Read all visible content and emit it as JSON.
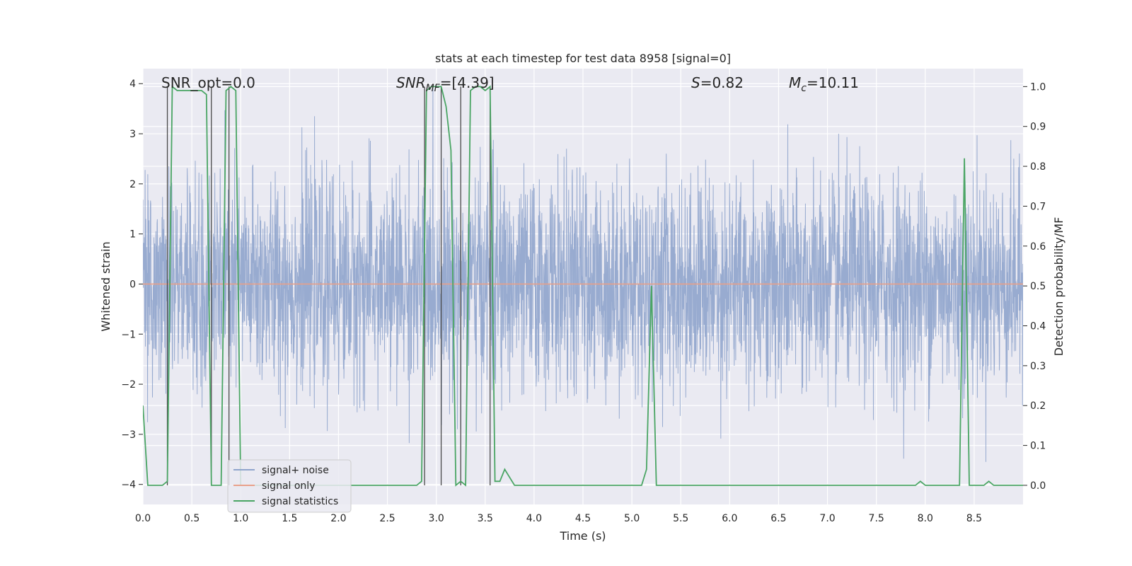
{
  "chart_data": {
    "type": "line",
    "title": "stats at each timestep for test data 8958 [signal=0]",
    "xlabel": "Time (s)",
    "ylabel": "Whitened strain",
    "ylabel_right": "Detection probability/MF",
    "xlim": [
      0,
      9.0
    ],
    "ylim": [
      -4.4,
      4.3
    ],
    "ylim_right": [
      -0.048,
      1.045
    ],
    "x_ticks": [
      "0.0",
      "0.5",
      "1.0",
      "1.5",
      "2.0",
      "2.5",
      "3.0",
      "3.5",
      "4.0",
      "4.5",
      "5.0",
      "5.5",
      "6.0",
      "6.5",
      "7.0",
      "7.5",
      "8.0",
      "8.5"
    ],
    "y_ticks": [
      "4",
      "3",
      "2",
      "1",
      "0",
      "−1",
      "−2",
      "−3",
      "−4"
    ],
    "y_ticks_right": [
      "1.0",
      "0.9",
      "0.8",
      "0.7",
      "0.6",
      "0.5",
      "0.4",
      "0.3",
      "0.2",
      "0.1",
      "0.0"
    ],
    "grid": true,
    "legend_position": "lower-left",
    "annotations": {
      "snr_opt": "SNR_opt=0.0",
      "snr_mf_italic": "SNR",
      "snr_mf_sub": "MF",
      "snr_mf_value": "=[4.39]",
      "s_italic": "S",
      "s_value": "=0.82",
      "mc_italic": "M",
      "mc_sub": "c",
      "mc_value": "=10.11"
    },
    "series": [
      {
        "name": "signal+ noise",
        "color": "#8fa4cc",
        "description": "whitened strain noise, roughly Gaussian with sigma ≈ 1 sampled at high rate over 0–9 s"
      },
      {
        "name": "signal only",
        "color": "#e8a08a",
        "values_constant": 0
      },
      {
        "name": "signal statistics",
        "color": "#4aa564",
        "axis": "right",
        "x": [
          0.0,
          0.05,
          0.1,
          0.15,
          0.2,
          0.25,
          0.3,
          0.35,
          0.4,
          0.45,
          0.5,
          0.55,
          0.6,
          0.65,
          0.7,
          0.75,
          0.8,
          0.85,
          0.9,
          0.95,
          1.0,
          1.05,
          1.1,
          2.5,
          2.8,
          2.85,
          2.9,
          2.95,
          3.0,
          3.05,
          3.1,
          3.15,
          3.2,
          3.25,
          3.3,
          3.35,
          3.4,
          3.45,
          3.5,
          3.55,
          3.6,
          3.65,
          3.7,
          3.75,
          3.8,
          3.85,
          3.9,
          4.5,
          5.05,
          5.1,
          5.15,
          5.2,
          5.25,
          5.3,
          5.35,
          5.5,
          6.0,
          7.0,
          7.5,
          7.75,
          7.85,
          7.9,
          7.95,
          8.0,
          8.25,
          8.3,
          8.35,
          8.4,
          8.45,
          8.5,
          8.6,
          8.65,
          8.7,
          8.75,
          8.9,
          9.0
        ],
        "values": [
          0.2,
          0.0,
          0.0,
          0.0,
          0.0,
          0.01,
          1.0,
          0.99,
          0.99,
          0.99,
          0.99,
          0.99,
          0.99,
          0.98,
          0.0,
          0.0,
          0.0,
          0.99,
          1.0,
          0.99,
          0.0,
          0.0,
          0.0,
          0.0,
          0.0,
          0.01,
          0.99,
          1.0,
          1.0,
          1.0,
          0.95,
          0.84,
          0.0,
          0.01,
          0.0,
          0.99,
          1.0,
          1.0,
          0.99,
          1.0,
          0.01,
          0.01,
          0.04,
          0.02,
          0.0,
          0.0,
          0.0,
          0.0,
          0.0,
          0.0,
          0.04,
          0.5,
          0.0,
          0.0,
          0.0,
          0.0,
          0.0,
          0.0,
          0.0,
          0.0,
          0.0,
          0.0,
          0.01,
          0.0,
          0.0,
          0.0,
          0.0,
          0.82,
          0.0,
          0.0,
          0.0,
          0.01,
          0.0,
          0.0,
          0.0,
          0.0
        ]
      }
    ],
    "vertical_markers_x": [
      0.25,
      0.7,
      0.88,
      2.88,
      3.05,
      3.25,
      3.55
    ]
  }
}
